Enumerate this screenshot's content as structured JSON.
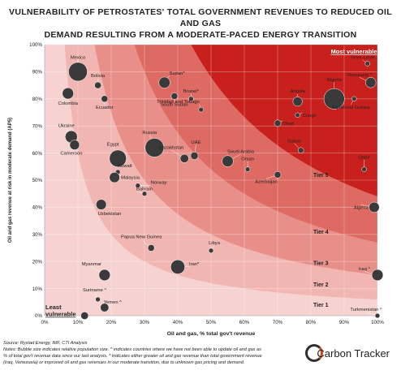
{
  "title_line1": "VULNERABILITY OF PETROSTATES' TOTAL GOVERNMENT REVENUES TO REDUCED OIL AND GAS",
  "title_line2": "DEMAND RESULTING FROM A MODERATE-PACED ENERGY TRANSITION",
  "footer": {
    "source": "Source: Rystad Energy, IMF, CTI Analysis",
    "notes1": "Notes: Bubble size indicates relative population size. ^ indicates countries where we have not been able to update oil and gas as",
    "notes2": "% of total gov't revenue data since our last analysis. * indicates either greater oil and gas revenue than total government revenue",
    "notes3": "(Iraq, Venezuela) or improved oil and gas revenues in our moderate transition, due to unknown gas pricing and demand."
  },
  "logo_text": "Carbon Tracker",
  "chart_data": {
    "type": "scatter",
    "xlabel": "Oil and gas, % total gov't revenue",
    "ylabel": "Oil and gas revenue at  risk in moderate demand (AP5)",
    "xlim": [
      0,
      100
    ],
    "ylim": [
      0,
      100
    ],
    "x_ticks": [
      "0%",
      "10%",
      "20%",
      "30%",
      "40%",
      "50%",
      "60%",
      "70%",
      "80%",
      "90%",
      "100%"
    ],
    "y_ticks": [
      "0%",
      "10%",
      "20%",
      "30%",
      "40%",
      "50%",
      "60%",
      "70%",
      "80%",
      "90%",
      "100%"
    ],
    "grid": true,
    "tiers": [
      "Tier 1",
      "Tier 2",
      "Tier 3",
      "Tier 4",
      "Tier 5"
    ],
    "tier_colors": [
      "#f6d3d1",
      "#f1b6b2",
      "#e88f8a",
      "#de6a64",
      "#c8201c"
    ],
    "corner_labels": {
      "top_right": "Most vulnerable",
      "bottom_left": "Least vulnerable"
    },
    "bubble_color": "#3a3a3a",
    "points": [
      {
        "label": "Mexico",
        "x": 10,
        "y": 90,
        "size": 9
      },
      {
        "label": "Bolivia",
        "x": 16,
        "y": 85,
        "size": 2.5
      },
      {
        "label": "Colombia",
        "x": 7,
        "y": 82,
        "size": 5
      },
      {
        "label": "Ecuador",
        "x": 18,
        "y": 80,
        "size": 2.5
      },
      {
        "label": "Sudan*",
        "x": 36,
        "y": 86,
        "size": 5
      },
      {
        "label": "South Sudan",
        "x": 39,
        "y": 81,
        "size": 2.5
      },
      {
        "label": "Brunei*",
        "x": 44,
        "y": 80,
        "size": 1.5
      },
      {
        "label": "Trinidad and Tobago",
        "x": 47,
        "y": 76,
        "size": 1.5
      },
      {
        "label": "Ukraine",
        "x": 8,
        "y": 66,
        "size": 5.5
      },
      {
        "label": "Cameroon",
        "x": 9,
        "y": 63,
        "size": 4.2
      },
      {
        "label": "Egypt",
        "x": 22,
        "y": 58,
        "size": 8
      },
      {
        "label": "Russia",
        "x": 33,
        "y": 62,
        "size": 9
      },
      {
        "label": "Kazakhstan",
        "x": 42,
        "y": 58,
        "size": 3.5
      },
      {
        "label": "UAE",
        "x": 45,
        "y": 59,
        "size": 3
      },
      {
        "label": "Saudi Arabia",
        "x": 55,
        "y": 57,
        "size": 5
      },
      {
        "label": "Angola",
        "x": 76,
        "y": 79,
        "size": 4
      },
      {
        "label": "Nigeria",
        "x": 87,
        "y": 80,
        "size": 10
      },
      {
        "label": "Chad",
        "x": 70,
        "y": 71,
        "size": 2.5
      },
      {
        "label": "Congo",
        "x": 76,
        "y": 74,
        "size": 1.5
      },
      {
        "label": "Timor-Leste",
        "x": 97,
        "y": 93,
        "size": 1.5
      },
      {
        "label": "Venezuela ^",
        "x": 98,
        "y": 86,
        "size": 4.5
      },
      {
        "label": "Equatorial Guinea",
        "x": 93,
        "y": 80,
        "size": 1.5
      },
      {
        "label": "Gabon",
        "x": 77,
        "y": 61,
        "size": 2
      },
      {
        "label": "Qatar",
        "x": 96,
        "y": 54,
        "size": 1.5
      },
      {
        "label": "Oman",
        "x": 61,
        "y": 54,
        "size": 1.5
      },
      {
        "label": "Azerbaijan",
        "x": 70,
        "y": 52,
        "size": 2.5
      },
      {
        "label": "Kuwait",
        "x": 22,
        "y": 53,
        "size": 1.5
      },
      {
        "label": "Malaysia",
        "x": 21,
        "y": 51,
        "size": 4.5
      },
      {
        "label": "Norway",
        "x": 28,
        "y": 48,
        "size": 1.5
      },
      {
        "label": "Bahrain",
        "x": 30,
        "y": 45,
        "size": 1.5
      },
      {
        "label": "Uzbekistan",
        "x": 17,
        "y": 41,
        "size": 4.5
      },
      {
        "label": "Algeria",
        "x": 99,
        "y": 40,
        "size": 4.5
      },
      {
        "label": "Papua New Guinea",
        "x": 32,
        "y": 25,
        "size": 2.5
      },
      {
        "label": "Libya",
        "x": 50,
        "y": 24,
        "size": 1.5
      },
      {
        "label": "Myanmar",
        "x": 18,
        "y": 15,
        "size": 5
      },
      {
        "label": "Iran*",
        "x": 40,
        "y": 18,
        "size": 6.5
      },
      {
        "label": "Iraq ^",
        "x": 100,
        "y": 15,
        "size": 5
      },
      {
        "label": "Suriname ^",
        "x": 16,
        "y": 6,
        "size": 1.5
      },
      {
        "label": "Yemen ^",
        "x": 18,
        "y": 3,
        "size": 3.5
      },
      {
        "label": "Turkmenistan ^",
        "x": 100,
        "y": 0,
        "size": 1.5
      },
      {
        "label": "",
        "x": 12,
        "y": 0,
        "size": 3
      }
    ]
  }
}
